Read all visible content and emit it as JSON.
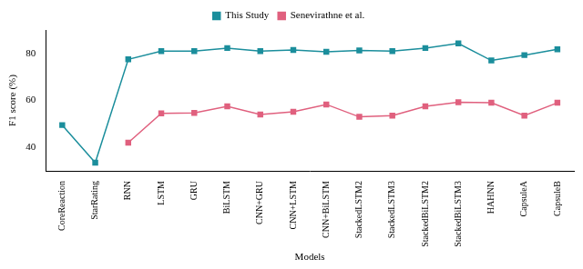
{
  "chart_data": {
    "type": "line",
    "x_label": "Models",
    "y_label": "F1 score (%)",
    "categories": [
      "CoreReaction",
      "StarRating",
      "RNN",
      "LSTM",
      "GRU",
      "BiLSTM",
      "CNN+GRU",
      "CNN+LSTM",
      "CNN+BiLSTM",
      "StackedLSTM2",
      "StackedLSTM3",
      "StackedBiLSTM2",
      "StackedBiLSTM3",
      "HAHNN",
      "CapsuleA",
      "CapsuleB"
    ],
    "series": [
      {
        "name": "This Study",
        "color": "#1b8e9c",
        "marker": "square",
        "line_style": "solid",
        "values": [
          49.5,
          33.5,
          77.5,
          81,
          81,
          82.3,
          81,
          81.5,
          80.7,
          81.3,
          81,
          82.3,
          84.3,
          77,
          79.3,
          81.8
        ]
      },
      {
        "name": "Senevirathne et al.",
        "color": "#e0607e",
        "marker": "square",
        "line_style": "solid",
        "values": [
          null,
          null,
          42,
          54.5,
          54.7,
          57.5,
          54,
          55.2,
          58.3,
          53,
          53.5,
          57.5,
          59.2,
          59,
          53.5,
          59
        ]
      }
    ],
    "ylim": [
      30,
      90
    ],
    "yticks": [
      40,
      60,
      80
    ],
    "grid": false,
    "legend": "top"
  }
}
